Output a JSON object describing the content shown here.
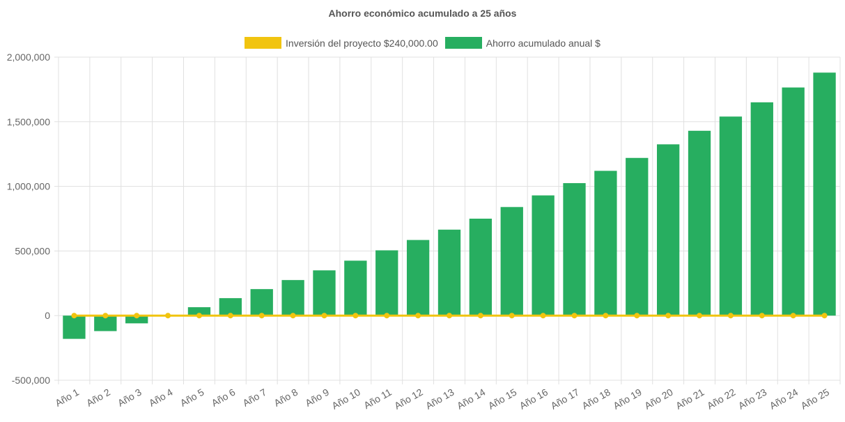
{
  "chart_data": {
    "type": "bar",
    "title": "Ahorro económico acumulado a 25 años",
    "xlabel": "",
    "ylabel": "",
    "ylim": [
      -500000,
      2000000
    ],
    "ytick_labels": [
      "2,000,000",
      "1,500,000",
      "1,000,000",
      "500,000",
      "0",
      "-500,000"
    ],
    "ytick_values": [
      2000000,
      1500000,
      1000000,
      500000,
      0,
      -500000
    ],
    "categories": [
      "Año 1",
      "Año 2",
      "Año 3",
      "Año 4",
      "Año 5",
      "Año 6",
      "Año 7",
      "Año 8",
      "Año 9",
      "Año 10",
      "Año 11",
      "Año 12",
      "Año 13",
      "Año 14",
      "Año 15",
      "Año 16",
      "Año 17",
      "Año 18",
      "Año 19",
      "Año 20",
      "Año 21",
      "Año 22",
      "Año 23",
      "Año 24",
      "Año 25"
    ],
    "grid": true,
    "legend_position": "top-center",
    "series": [
      {
        "name": "Inversión del proyecto $240,000.00",
        "type": "line",
        "color": "#f1c40f",
        "values": [
          0,
          0,
          0,
          0,
          0,
          0,
          0,
          0,
          0,
          0,
          0,
          0,
          0,
          0,
          0,
          0,
          0,
          0,
          0,
          0,
          0,
          0,
          0,
          0,
          0
        ]
      },
      {
        "name": "Ahorro acumulado anual $",
        "type": "bar",
        "color": "#27ae60",
        "values": [
          -180000,
          -120000,
          -60000,
          0,
          65000,
          135000,
          205000,
          275000,
          350000,
          425000,
          505000,
          585000,
          665000,
          750000,
          840000,
          930000,
          1025000,
          1120000,
          1220000,
          1325000,
          1430000,
          1540000,
          1650000,
          1765000,
          1880000
        ]
      }
    ]
  }
}
